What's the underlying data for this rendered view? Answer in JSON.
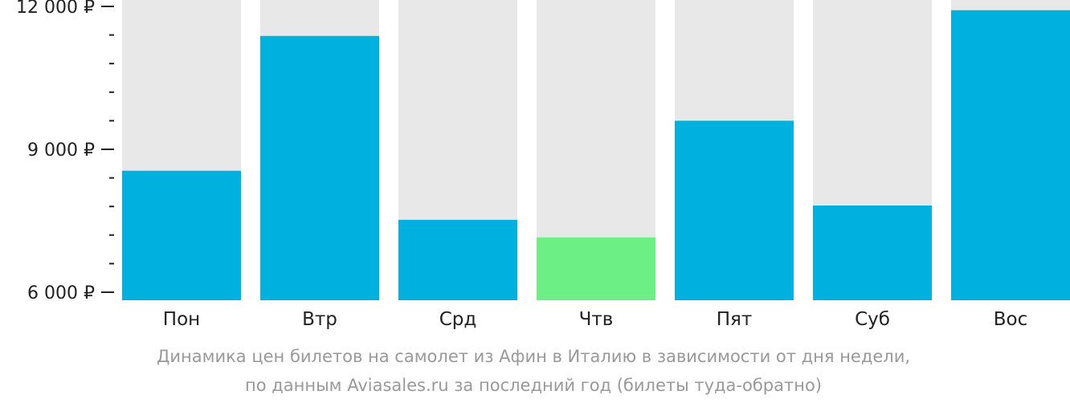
{
  "chart_data": {
    "type": "bar",
    "categories": [
      "Пон",
      "Втр",
      "Срд",
      "Чтв",
      "Пят",
      "Суб",
      "Вос"
    ],
    "values": [
      8550,
      11380,
      7520,
      7150,
      9600,
      7820,
      11920
    ],
    "ylim": [
      6000,
      12000
    ],
    "y_major_ticks": [
      6000,
      9000,
      12000
    ],
    "y_tick_labels": [
      "6 000 ₽",
      "9 000 ₽",
      "12 000 ₽"
    ],
    "y_minor_step": 600,
    "highlight_category": "Чтв",
    "colors": {
      "bar": "#00b0de",
      "highlight": "#6cf086",
      "track": "#e8e8e8",
      "axis": "#222222"
    },
    "caption": [
      "Динамика цен билетов на самолет из Афин в Италию в зависимости от дня недели,",
      "по данным Aviasales.ru за последний год (билеты туда-обратно)"
    ]
  }
}
